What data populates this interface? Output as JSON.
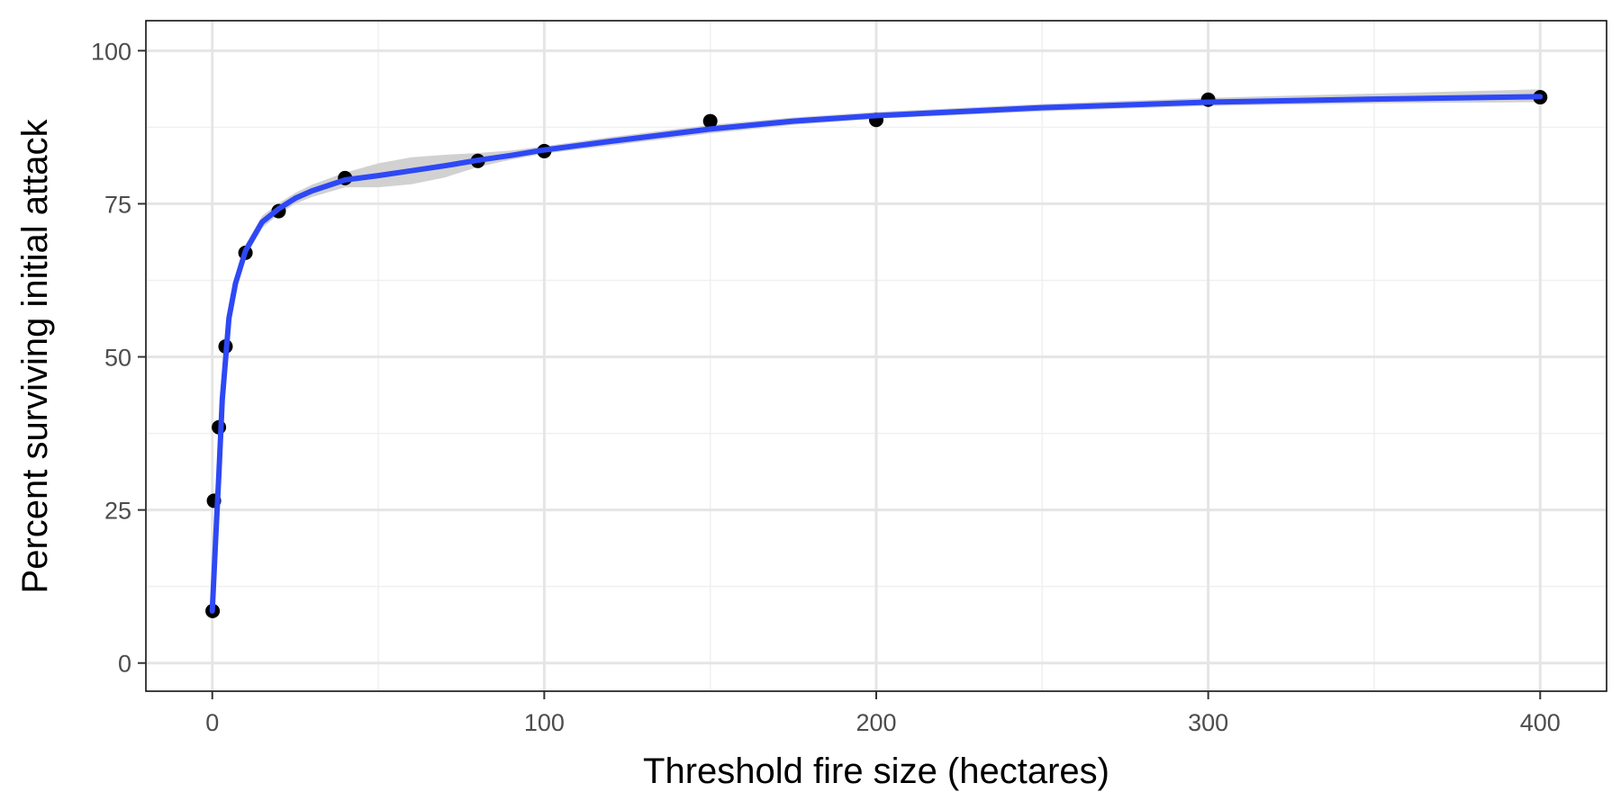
{
  "chart_data": {
    "type": "scatter",
    "title": "",
    "xlabel": "Threshold fire size (hectares)",
    "ylabel": "Percent surviving initial attack",
    "xlim": [
      -20,
      420
    ],
    "ylim": [
      -4.6,
      104.9
    ],
    "x_ticks": [
      0,
      100,
      200,
      300,
      400
    ],
    "x_minor_ticks": [
      50,
      150,
      250,
      350
    ],
    "y_ticks": [
      0,
      25,
      50,
      75,
      100
    ],
    "y_minor_ticks": [
      12.5,
      37.5,
      62.5,
      87.5
    ],
    "x_tick_labels": [
      "0",
      "100",
      "200",
      "300",
      "400"
    ],
    "y_tick_labels": [
      "0",
      "25",
      "50",
      "75",
      "100"
    ],
    "grid": true,
    "legend": "none",
    "points": {
      "x": [
        0.1,
        0.5,
        2,
        4,
        10,
        20,
        40,
        80,
        100,
        150,
        200,
        300,
        400
      ],
      "y": [
        8.5,
        26.5,
        38.5,
        51.7,
        67,
        73.8,
        79.2,
        82,
        83.6,
        88.5,
        88.7,
        92,
        92.4
      ]
    },
    "smooth": {
      "x": [
        0,
        1,
        2,
        3,
        5,
        7,
        10,
        15,
        20,
        25,
        30,
        40,
        50,
        60,
        70,
        80,
        90,
        100,
        120,
        150,
        175,
        200,
        250,
        300,
        350,
        400
      ],
      "y": [
        8.5,
        20,
        31,
        43,
        56.3,
        62,
        67.3,
        72,
        74.2,
        75.9,
        77.1,
        78.9,
        79.6,
        80.4,
        81.2,
        82.1,
        82.9,
        83.8,
        85.2,
        87.2,
        88.5,
        89.4,
        90.7,
        91.6,
        92.1,
        92.5
      ],
      "ci_lower": [
        7.5,
        19,
        30,
        42,
        55.3,
        61,
        66.3,
        71,
        73.3,
        75,
        76.1,
        77.7,
        77.7,
        78.2,
        79.3,
        81,
        82.2,
        83.2,
        84.5,
        86.5,
        87.9,
        88.9,
        90.1,
        91,
        91.4,
        91.6
      ],
      "ci_upper": [
        9.5,
        21,
        32,
        44,
        57.3,
        63,
        68.3,
        73,
        75.1,
        76.8,
        78.1,
        80.1,
        81.6,
        82.6,
        83,
        83.3,
        83.7,
        84.4,
        85.9,
        87.9,
        89.1,
        90,
        91.3,
        92.3,
        93,
        93.7
      ]
    },
    "colors": {
      "line": "#2e48f5",
      "ribbon": "#cfcfcf",
      "points": "#000000",
      "grid_major": "#e5e5e5",
      "grid_minor": "#f0f0f0",
      "panel_border": "#000000",
      "tick_text": "#4d4d4d"
    }
  }
}
